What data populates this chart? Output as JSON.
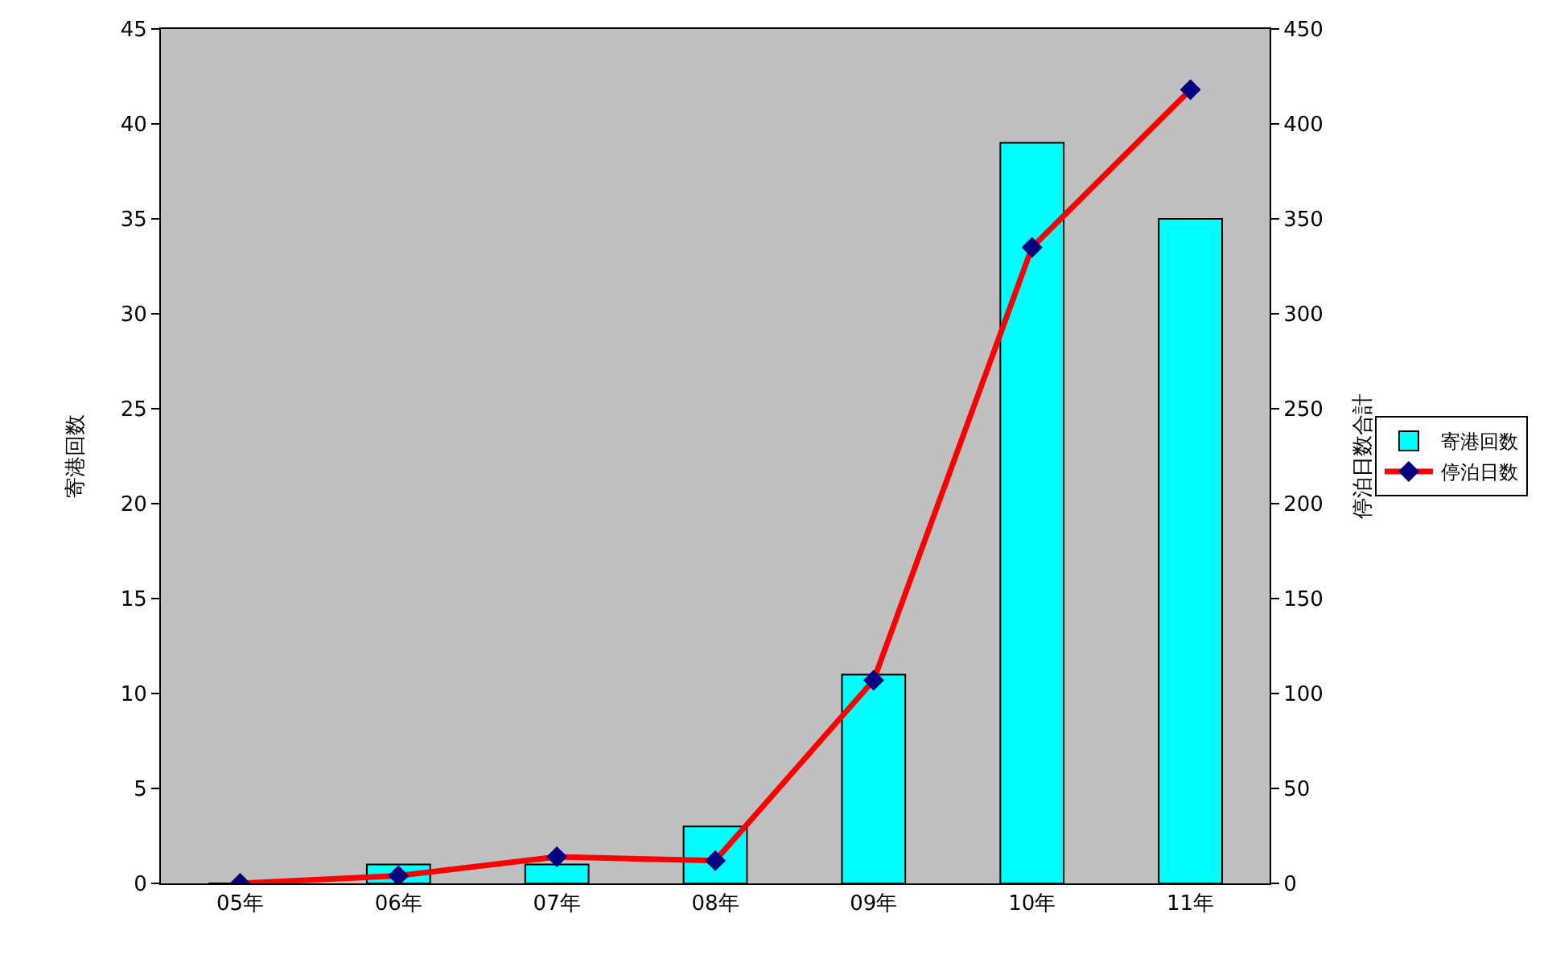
{
  "chart_data": {
    "type": "bar",
    "categories": [
      "05年",
      "06年",
      "07年",
      "08年",
      "09年",
      "10年",
      "11年"
    ],
    "ylabel": "寄港回数",
    "y2label": "停泊日数合計",
    "series": [
      {
        "name": "寄港回数",
        "color": "#00ffff",
        "values": [
          0,
          1,
          1,
          3,
          11,
          39,
          35
        ]
      },
      {
        "name": "停泊日数",
        "type": "line",
        "axis": "y2",
        "color": "#ff0000",
        "marker": "diamond",
        "values": [
          0,
          4,
          14,
          12,
          107,
          335,
          418
        ]
      }
    ],
    "ylim": [
      0,
      45
    ],
    "yticks": [
      0,
      5,
      10,
      15,
      20,
      25,
      30,
      35,
      40,
      45
    ],
    "y2lim": [
      0,
      450
    ],
    "y2ticks": [
      0,
      50,
      100,
      150,
      200,
      250,
      300,
      350,
      400,
      450
    ],
    "grid": false,
    "legend": "right"
  }
}
